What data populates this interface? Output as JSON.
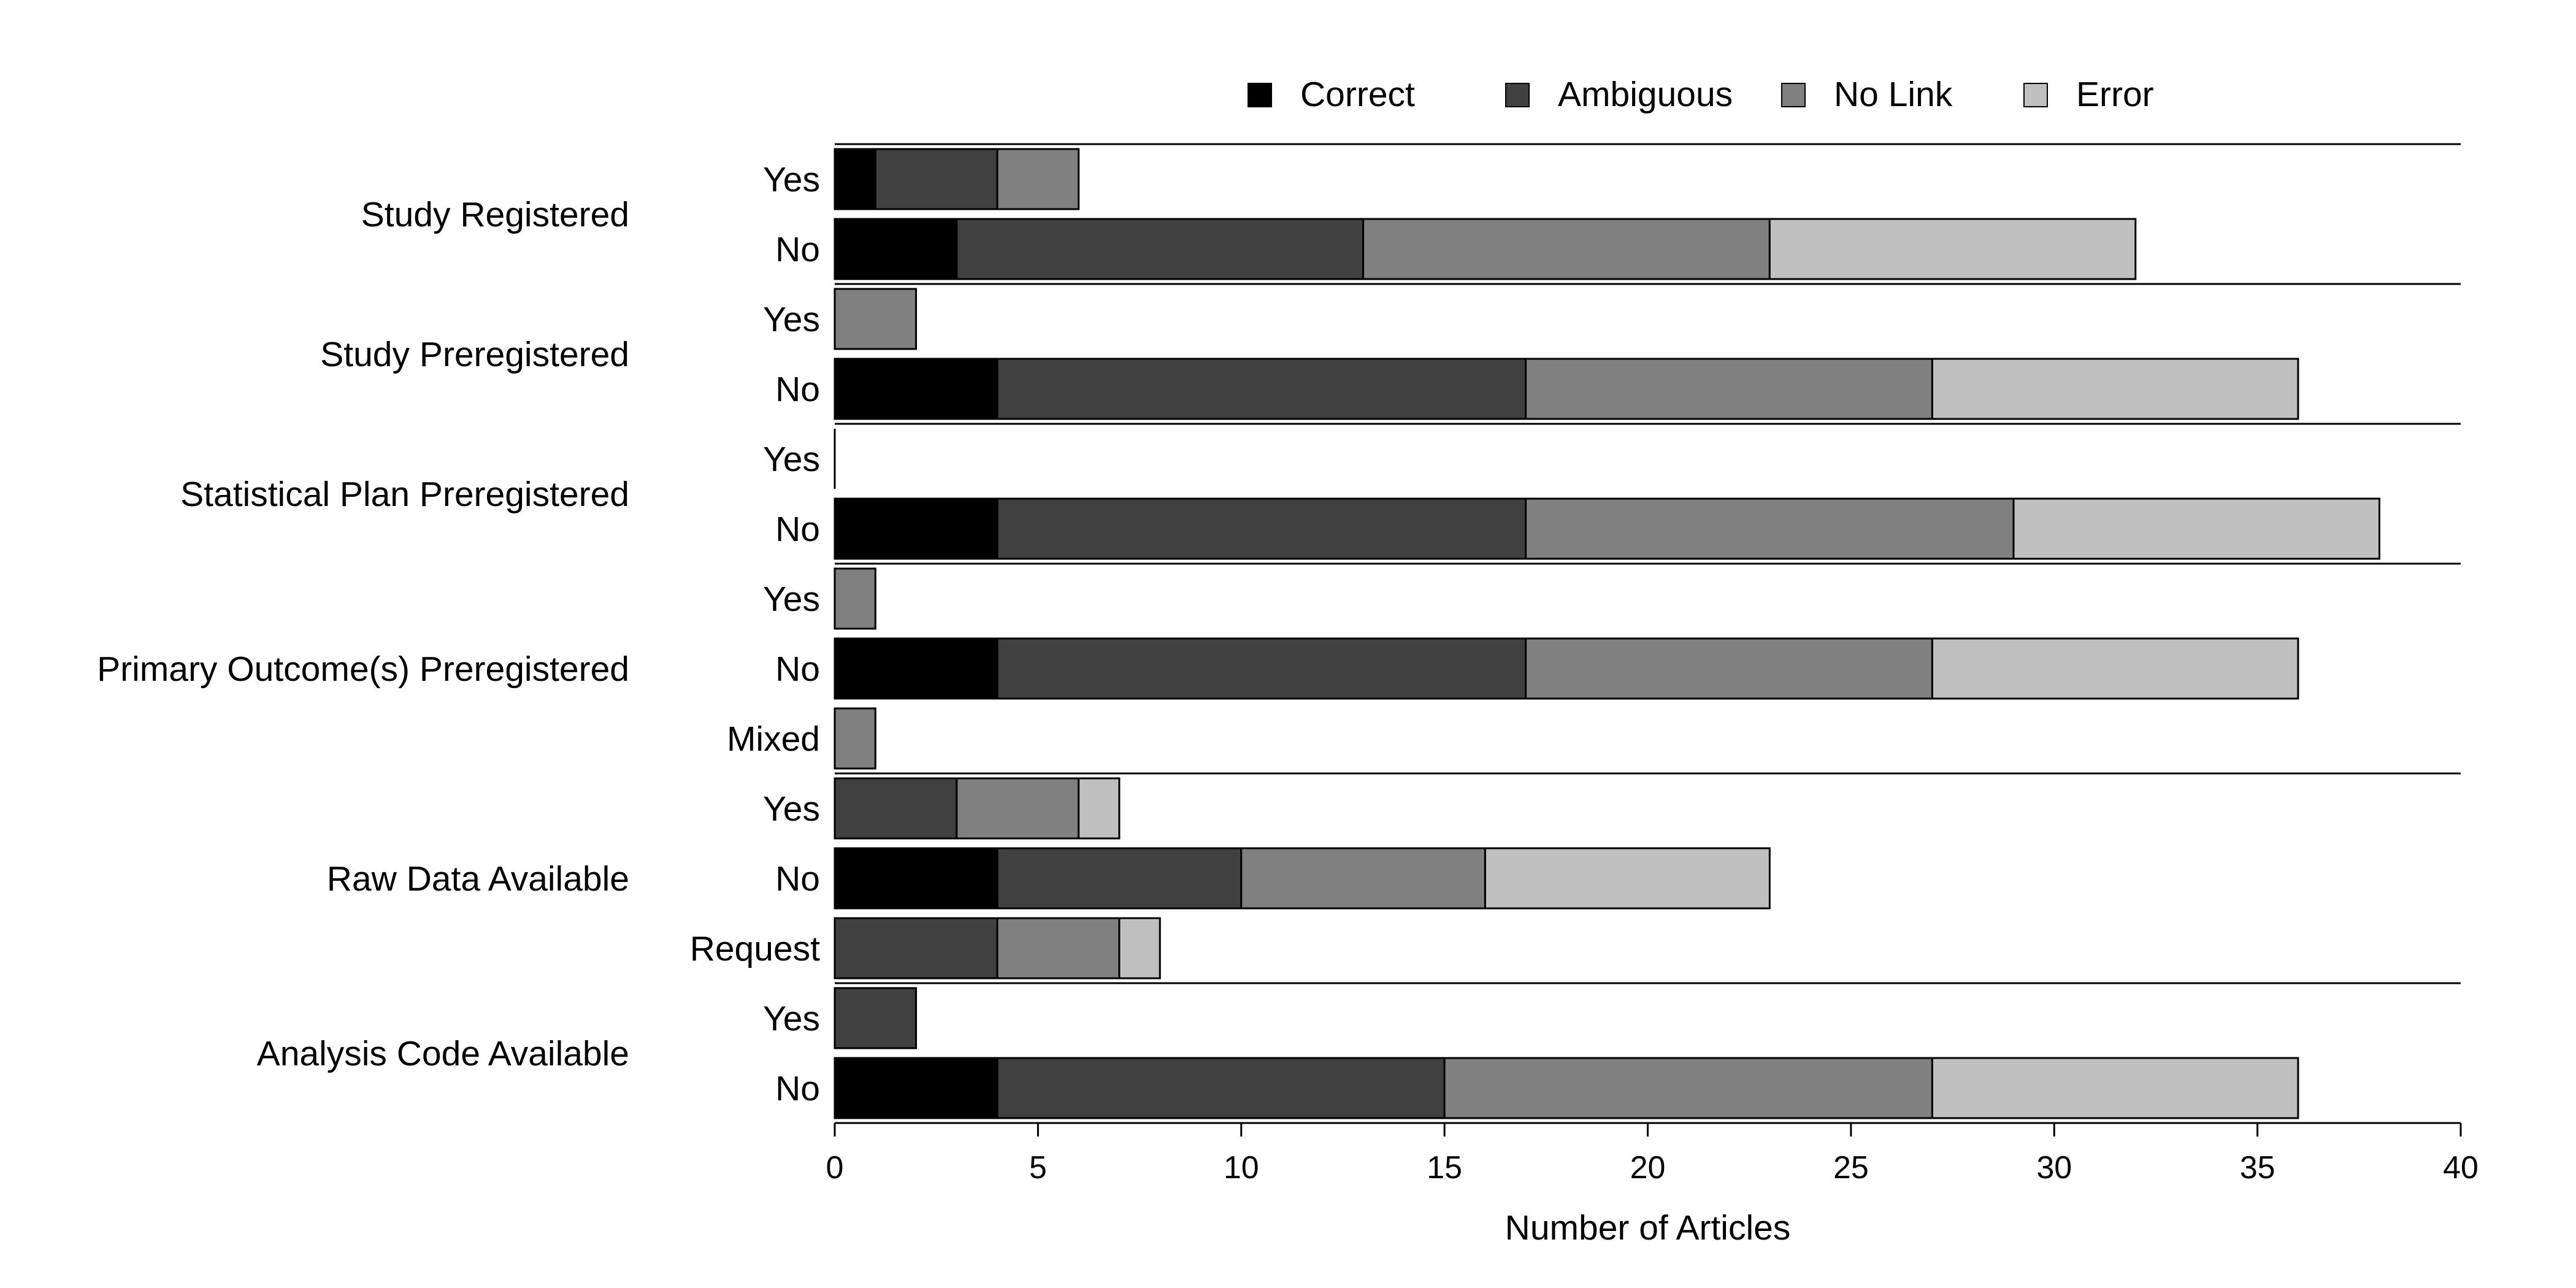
{
  "chart_data": {
    "type": "bar",
    "orientation": "horizontal",
    "stacked": true,
    "xlabel": "Number of Articles",
    "xlim": [
      0,
      40
    ],
    "xticks": [
      0,
      5,
      10,
      15,
      20,
      25,
      30,
      35,
      40
    ],
    "legend": {
      "placement": "top-center"
    },
    "series": [
      {
        "name": "Correct",
        "color": "#000000"
      },
      {
        "name": "Ambiguous",
        "color": "#404040"
      },
      {
        "name": "No Link",
        "color": "#808080"
      },
      {
        "name": "Error",
        "color": "#c0c0c0"
      }
    ],
    "groups": [
      {
        "name": "Study Registered",
        "rows": [
          {
            "label": "Yes",
            "values": [
              1,
              3,
              2,
              0
            ]
          },
          {
            "label": "No",
            "values": [
              3,
              10,
              10,
              9
            ]
          }
        ]
      },
      {
        "name": "Study Preregistered",
        "rows": [
          {
            "label": "Yes",
            "values": [
              0,
              0,
              2,
              0
            ]
          },
          {
            "label": "No",
            "values": [
              4,
              13,
              10,
              9
            ]
          }
        ]
      },
      {
        "name": "Statistical Plan Preregistered",
        "rows": [
          {
            "label": "Yes",
            "values": [
              0,
              0,
              0,
              0
            ]
          },
          {
            "label": "No",
            "values": [
              4,
              13,
              12,
              9
            ]
          }
        ]
      },
      {
        "name": "Primary Outcome(s) Preregistered",
        "rows": [
          {
            "label": "Yes",
            "values": [
              0,
              0,
              1,
              0
            ]
          },
          {
            "label": "No",
            "values": [
              4,
              13,
              10,
              9
            ]
          },
          {
            "label": "Mixed",
            "values": [
              0,
              0,
              1,
              0
            ]
          }
        ]
      },
      {
        "name": "Raw Data Available",
        "rows": [
          {
            "label": "Yes",
            "values": [
              0,
              3,
              3,
              1
            ]
          },
          {
            "label": "No",
            "values": [
              4,
              6,
              6,
              7
            ]
          },
          {
            "label": "Request",
            "values": [
              0,
              4,
              3,
              1
            ]
          }
        ]
      },
      {
        "name": "Analysis Code Available",
        "rows": [
          {
            "label": "Yes",
            "values": [
              0,
              2,
              0,
              0
            ]
          },
          {
            "label": "No",
            "values": [
              4,
              11,
              12,
              9
            ]
          }
        ]
      }
    ]
  }
}
